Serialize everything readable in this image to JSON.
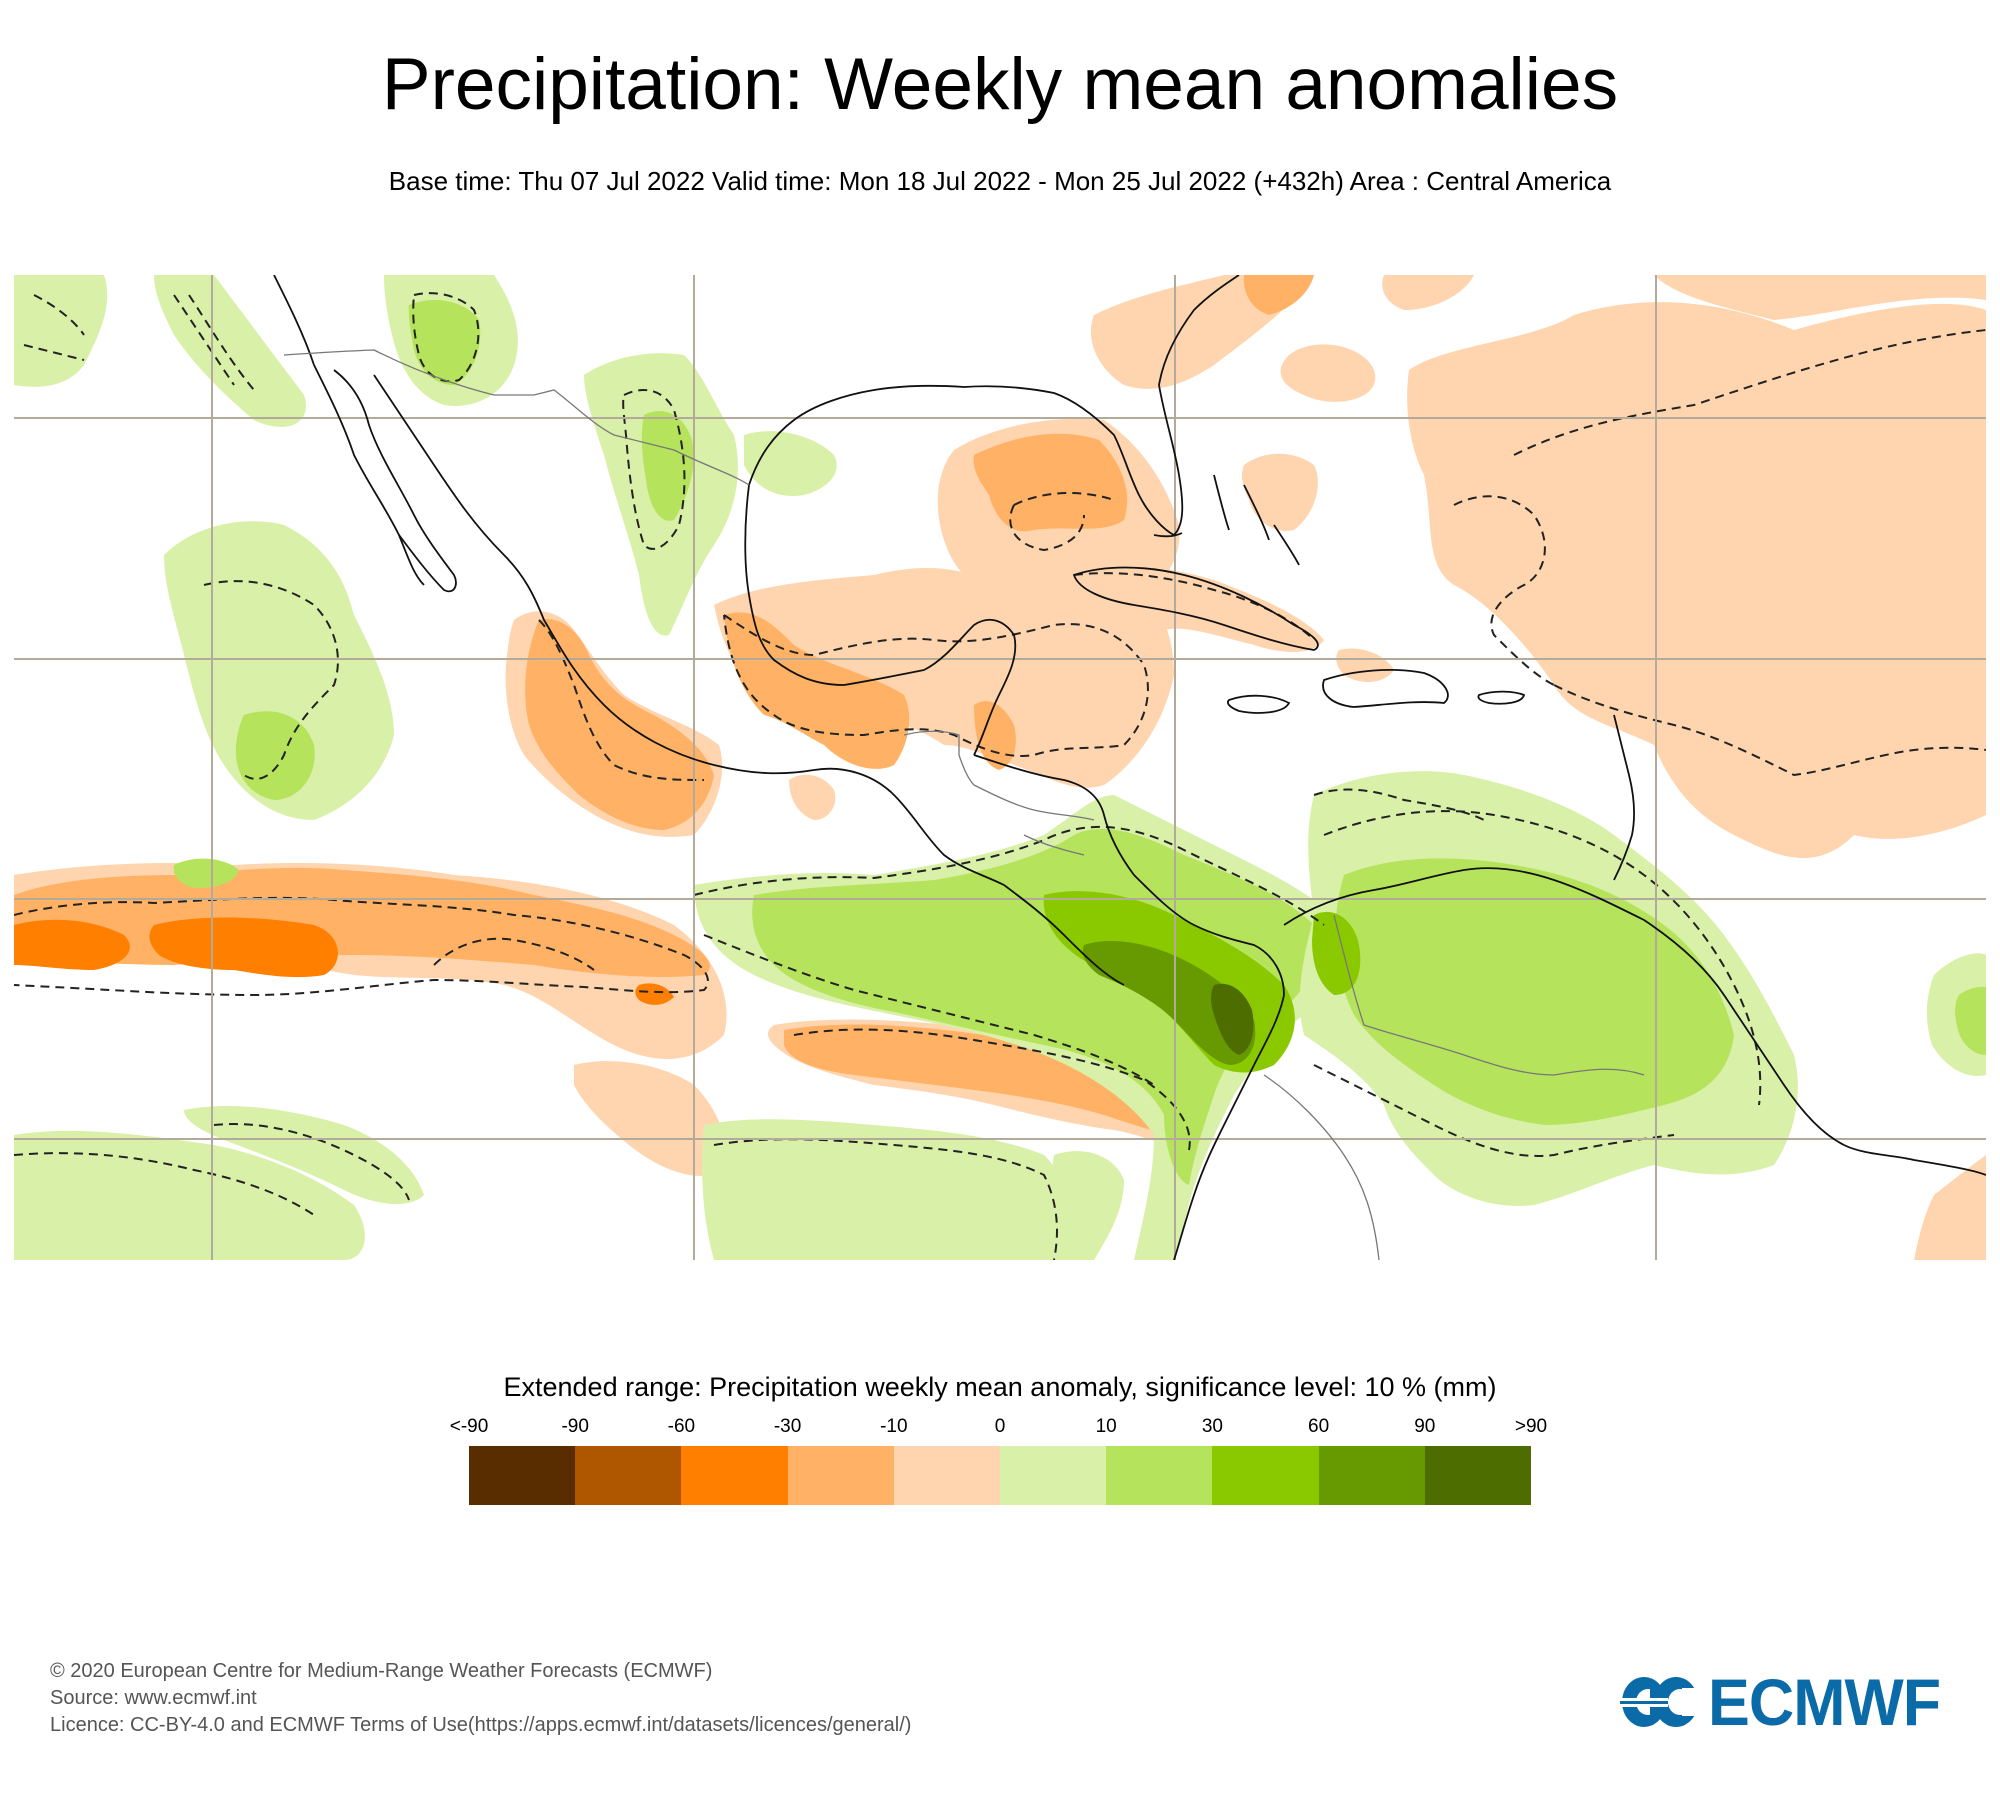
{
  "header": {
    "title": "Precipitation: Weekly mean anomalies",
    "subtitle": "Base time: Thu 07 Jul 2022 Valid time: Mon 18 Jul 2022 - Mon 25 Jul 2022 (+432h) Area : Central America"
  },
  "map": {
    "area": "Central America",
    "base_time": "Thu 07 Jul 2022",
    "valid_time": "Mon 18 Jul 2022 - Mon 25 Jul 2022",
    "lead_time": "+432h",
    "significance_contour": "dashed",
    "colors": {
      "lt_neg90": "#5a2d00",
      "neg90_neg60": "#ae5700",
      "neg60_neg30": "#ff8000",
      "neg30_neg10": "#ffb265",
      "neg10_0": "#ffd5b0",
      "0_10": "#d9f0a8",
      "10_30": "#b6e35c",
      "30_60": "#8ac900",
      "60_90": "#679900",
      "gt_90": "#4e6d00",
      "gridline": "#b3aa9a",
      "coastline": "#000000",
      "border": "#777777"
    }
  },
  "legend": {
    "title": "Extended range: Precipitation weekly mean anomaly, significance level: 10 % (mm)",
    "labels": [
      "<-90",
      "-90",
      "-60",
      "-30",
      "-10",
      "0",
      "10",
      "30",
      "60",
      "90",
      ">90"
    ],
    "colors": [
      "#5a2d00",
      "#ae5700",
      "#ff8000",
      "#ffb265",
      "#ffd5b0",
      "#d9f0a8",
      "#b6e35c",
      "#8ac900",
      "#679900",
      "#4e6d00"
    ]
  },
  "footer": {
    "copyright": "© 2020 European Centre for Medium-Range Weather Forecasts (ECMWF)",
    "source": "Source: www.ecmwf.int",
    "licence": "Licence: CC-BY-4.0 and ECMWF Terms of Use(https://apps.ecmwf.int/datasets/licences/general/)"
  },
  "logo": {
    "text": "ECMWF",
    "color": "#0b6aa8"
  }
}
